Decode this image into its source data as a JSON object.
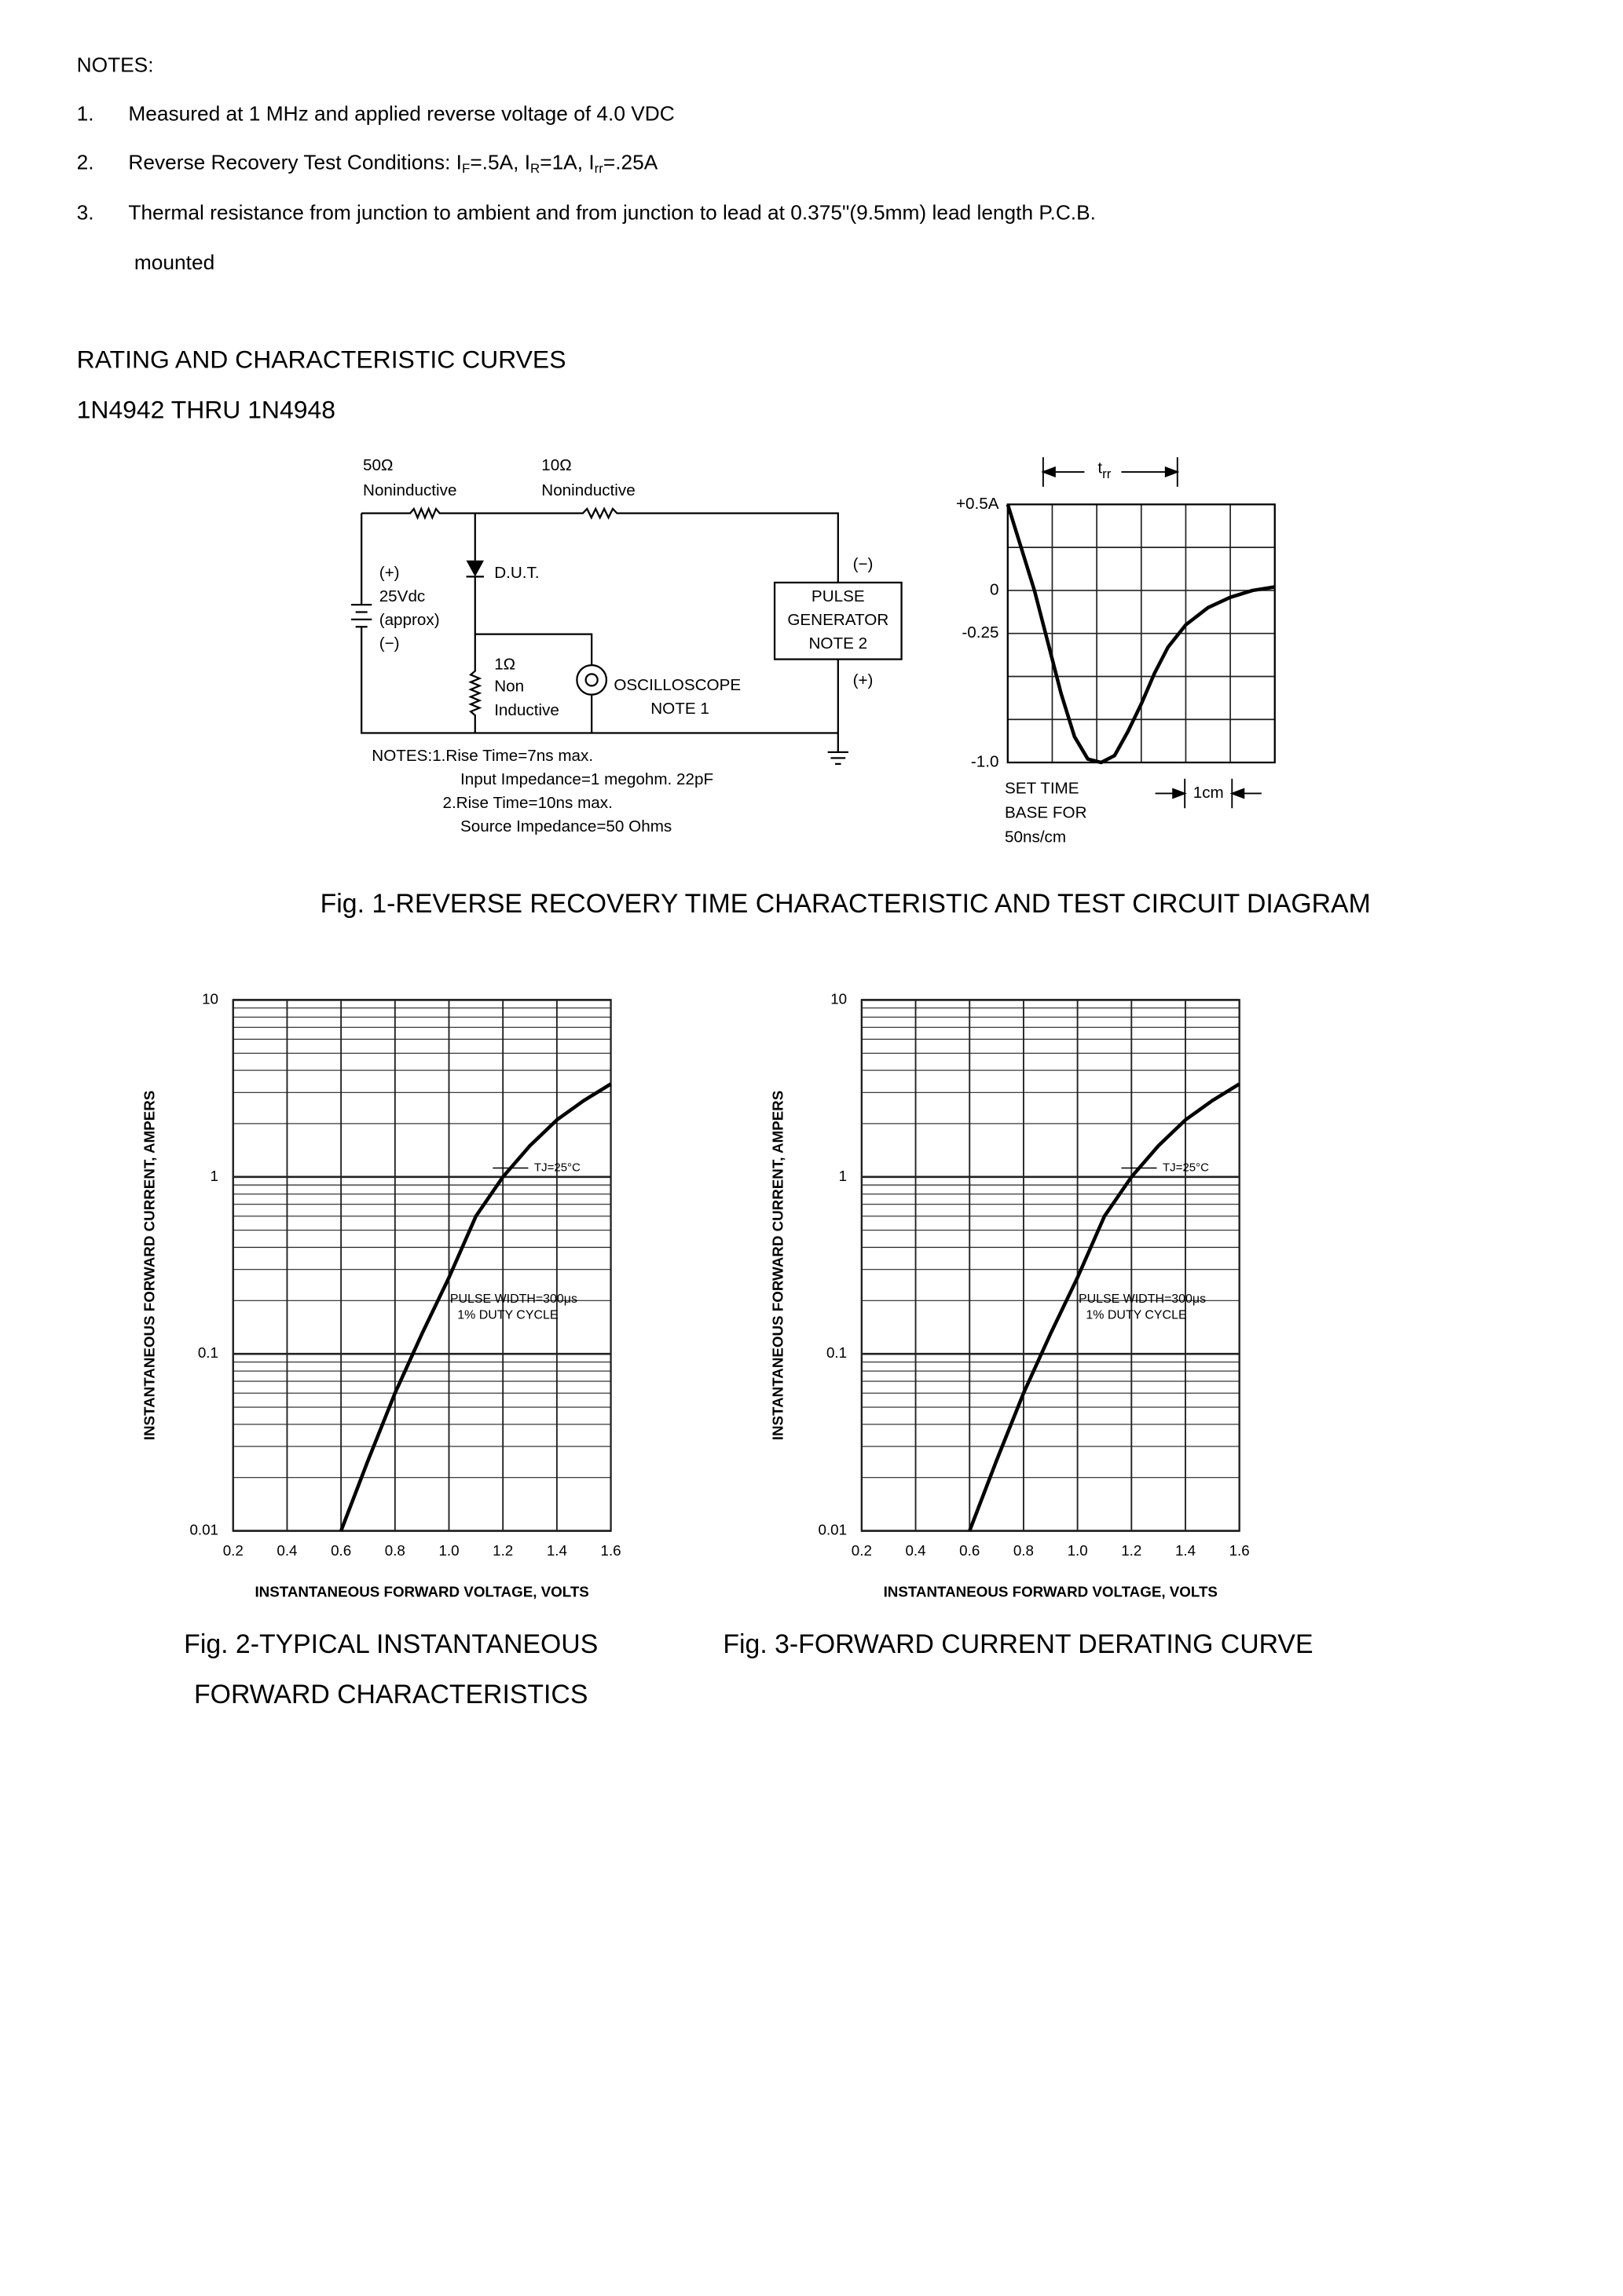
{
  "notes": {
    "heading": "NOTES:",
    "items": [
      {
        "number": "1.",
        "text": "Measured at 1 MHz and applied reverse voltage of 4.0 VDC"
      },
      {
        "number": "2.",
        "runs": [
          "Reverse Recovery Test Conditions: I",
          "F",
          "=.5A, I",
          "R",
          "=1A, I",
          "rr",
          "=.25A"
        ]
      },
      {
        "number": "3.",
        "text": "Thermal resistance from junction to ambient and from junction to lead at 0.375\"(9.5mm) lead length P.C.B.",
        "continuation": "mounted"
      }
    ]
  },
  "section": {
    "title": "RATING AND CHARACTERISTIC CURVES",
    "subtitle": "1N4942 THRU 1N4948"
  },
  "figure1": {
    "caption": "Fig. 1-REVERSE RECOVERY TIME CHARACTERISTIC AND TEST CIRCUIT DIAGRAM",
    "circuit": {
      "r1_value": "50Ω",
      "r1_type": "Noninductive",
      "r2_value": "10Ω",
      "r2_type": "Noninductive",
      "source": [
        "(+)",
        "25Vdc",
        "(approx)",
        "(−)"
      ],
      "dut": "D.U.T.",
      "r3": [
        "1Ω",
        "Non",
        "Inductive"
      ],
      "scope": [
        "OSCILLOSCOPE",
        "NOTE 1"
      ],
      "generator": [
        "PULSE",
        "GENERATOR",
        "NOTE 2"
      ],
      "gen_minus": "(−)",
      "gen_plus": "(+)",
      "notes": [
        "NOTES:1.Rise Time=7ns max.",
        "Input Impedance=1 megohm. 22pF",
        "2.Rise Time=10ns max.",
        "Source Impedance=50 Ohms"
      ]
    }
  },
  "chart_data": [
    {
      "type": "line",
      "x": [
        0,
        0.3,
        0.6,
        0.9,
        1.2,
        1.5,
        1.8,
        2.1,
        2.4,
        2.7,
        3.0,
        3.3,
        3.6,
        4.0,
        4.5,
        5.0,
        5.5,
        6
      ],
      "series": [
        {
          "color": "#000000",
          "values": [
            0.5,
            0.25,
            0,
            -0.3,
            -0.6,
            -0.85,
            -0.98,
            -1.0,
            -0.96,
            -0.82,
            -0.66,
            -0.48,
            -0.33,
            -0.2,
            -0.1,
            -0.04,
            0,
            0.02
          ]
        }
      ],
      "xlim": [
        0,
        6
      ],
      "ylim": [
        -1,
        0.5
      ],
      "yticks": [
        {
          "value": 0.5,
          "label": "+0.5A"
        },
        0,
        -0.25,
        {
          "value": -1,
          "label": "-1.0"
        }
      ],
      "xgrid": [
        0,
        1,
        2,
        3,
        4,
        5,
        6
      ],
      "ygrid": [
        0.5,
        0.25,
        0,
        -0.25,
        -0.5,
        -0.75,
        -1
      ],
      "annotations": {
        "trr": [
          "t",
          "rr"
        ],
        "time_base": [
          "SET TIME",
          "BASE FOR",
          "50ns/cm"
        ],
        "scale": "1cm"
      }
    },
    {
      "type": "line",
      "log_y": true,
      "x": [
        0.6,
        0.7,
        0.8,
        0.9,
        1.0,
        1.1,
        1.2,
        1.3,
        1.4,
        1.5,
        1.6
      ],
      "series": [
        {
          "color": "#000000",
          "values": [
            0.01,
            0.025,
            0.06,
            0.13,
            0.27,
            0.6,
            1.0,
            1.5,
            2.1,
            2.7,
            3.35
          ]
        }
      ],
      "xlim": [
        0.2,
        1.6
      ],
      "ylim": [
        0.01,
        10
      ],
      "xticks": [
        0.2,
        0.4,
        0.6,
        0.8,
        {
          "value": 1,
          "label": "1.0"
        },
        1.2,
        1.4,
        1.6
      ],
      "yticks": [
        10,
        1,
        0.1,
        0.01
      ],
      "y_minor_ticks": [
        0.02,
        0.03,
        0.04,
        0.05,
        0.06,
        0.07,
        0.08,
        0.09,
        0.2,
        0.3,
        0.4,
        0.5,
        0.6,
        0.7,
        0.8,
        0.9,
        2,
        3,
        4,
        5,
        6,
        7,
        8,
        9
      ],
      "xlabel": "INSTANTANEOUS FORWARD VOLTAGE, VOLTS",
      "ylabel": "INSTANTANEOUS FORWARD CURRENT, AMPERS",
      "annotations": {
        "temperature": "TJ=25°C",
        "pulse": [
          "PULSE WIDTH=300μs",
          "1% DUTY CYCLE"
        ]
      },
      "caption": [
        "Fig. 2-TYPICAL INSTANTANEOUS",
        "FORWARD CHARACTERISTICS"
      ]
    },
    {
      "type": "line",
      "log_y": true,
      "x": [
        0.6,
        0.7,
        0.8,
        0.9,
        1.0,
        1.1,
        1.2,
        1.3,
        1.4,
        1.5,
        1.6
      ],
      "series": [
        {
          "color": "#000000",
          "values": [
            0.01,
            0.025,
            0.06,
            0.13,
            0.27,
            0.6,
            1.0,
            1.5,
            2.1,
            2.7,
            3.35
          ]
        }
      ],
      "xlim": [
        0.2,
        1.6
      ],
      "ylim": [
        0.01,
        10
      ],
      "xticks": [
        0.2,
        0.4,
        0.6,
        0.8,
        {
          "value": 1,
          "label": "1.0"
        },
        1.2,
        1.4,
        1.6
      ],
      "yticks": [
        10,
        1,
        0.1,
        0.01
      ],
      "y_minor_ticks": [
        0.02,
        0.03,
        0.04,
        0.05,
        0.06,
        0.07,
        0.08,
        0.09,
        0.2,
        0.3,
        0.4,
        0.5,
        0.6,
        0.7,
        0.8,
        0.9,
        2,
        3,
        4,
        5,
        6,
        7,
        8,
        9
      ],
      "xlabel": "INSTANTANEOUS FORWARD VOLTAGE, VOLTS",
      "ylabel": "INSTANTANEOUS FORWARD CURRENT, AMPERS",
      "annotations": {
        "temperature": "TJ=25°C",
        "pulse": [
          "PULSE WIDTH=300μs",
          "1% DUTY CYCLE"
        ]
      },
      "caption": [
        "Fig. 3-FORWARD CURRENT DERATING CURVE"
      ]
    }
  ]
}
